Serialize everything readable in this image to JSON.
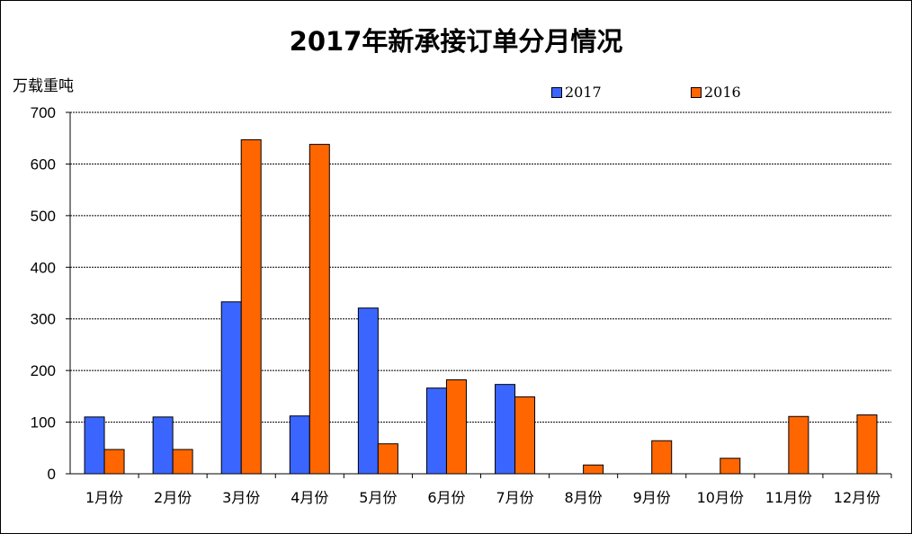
{
  "chart_data": {
    "type": "bar",
    "title": "2017年新承接订单分月情况",
    "ylabel": "万载重吨",
    "xlabel": "",
    "ylim": [
      0,
      700
    ],
    "yticks": [
      0,
      100,
      200,
      300,
      400,
      500,
      600,
      700
    ],
    "grid": true,
    "legend_position": "top-right",
    "categories": [
      "1月份",
      "2月份",
      "3月份",
      "4月份",
      "5月份",
      "6月份",
      "7月份",
      "8月份",
      "9月份",
      "10月份",
      "11月份",
      "12月份"
    ],
    "series": [
      {
        "name": "2017",
        "color": "#3a66ff",
        "values": [
          110,
          110,
          333,
          112,
          321,
          166,
          173,
          null,
          null,
          null,
          null,
          null
        ]
      },
      {
        "name": "2016",
        "color": "#ff6600",
        "values": [
          47,
          47,
          647,
          638,
          58,
          182,
          149,
          17,
          64,
          30,
          111,
          114
        ]
      }
    ]
  }
}
